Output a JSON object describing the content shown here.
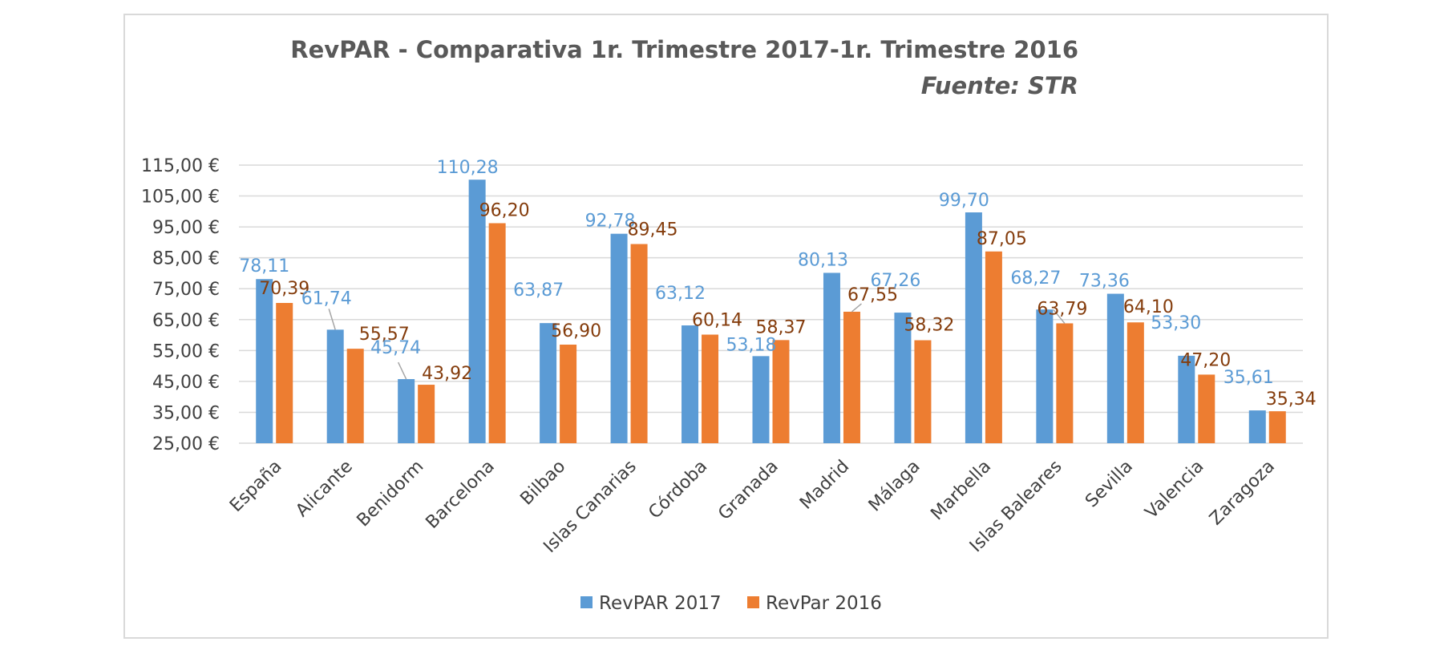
{
  "chart_data": {
    "type": "bar",
    "title": "RevPAR  - Comparativa 1r. Trimestre 2017-1r. Trimestre 2016",
    "subtitle": "Fuente: STR",
    "categories": [
      "España",
      "Alicante",
      "Benidorm",
      "Barcelona",
      "Bilbao",
      "Islas Canarias",
      "Córdoba",
      "Granada",
      "Madrid",
      "Málaga",
      "Marbella",
      "Islas Baleares",
      "Sevilla",
      "Valencia",
      "Zaragoza"
    ],
    "series": [
      {
        "name": "RevPAR 2017",
        "color": "#5b9bd5",
        "label_color": "#5b9bd5",
        "values": [
          78.11,
          61.74,
          45.74,
          110.28,
          63.87,
          92.78,
          63.12,
          53.18,
          80.13,
          67.26,
          99.7,
          68.27,
          73.36,
          53.3,
          35.61
        ],
        "labels": [
          "78,11",
          "61,74",
          "45,74",
          "110,28",
          "63,87",
          "92,78",
          "63,12",
          "53,18",
          "80,13",
          "67,26",
          "99,70",
          "68,27",
          "73,36",
          "53,30",
          "35,61"
        ]
      },
      {
        "name": "RevPar 2016",
        "color": "#ed7d31",
        "label_color": "#843c0c",
        "values": [
          70.39,
          55.57,
          43.92,
          96.2,
          56.9,
          89.45,
          60.14,
          58.37,
          67.55,
          58.32,
          87.05,
          63.79,
          64.1,
          47.2,
          35.34
        ],
        "labels": [
          "70,39",
          "55,57",
          "43,92",
          "96,20",
          "56,90",
          "89,45",
          "60,14",
          "58,37",
          "67,55",
          "58,32",
          "87,05",
          "63,79",
          "64,10",
          "47,20",
          "35,34"
        ]
      }
    ],
    "ylim": [
      25,
      115
    ],
    "yticks": [
      "25,00 €",
      "35,00 €",
      "45,00 €",
      "55,00 €",
      "65,00 €",
      "75,00 €",
      "85,00 €",
      "95,00 €",
      "105,00 €",
      "115,00 €"
    ],
    "ytick_values": [
      25,
      35,
      45,
      55,
      65,
      75,
      85,
      95,
      105,
      115
    ],
    "grid": true,
    "legend_position": "bottom"
  }
}
